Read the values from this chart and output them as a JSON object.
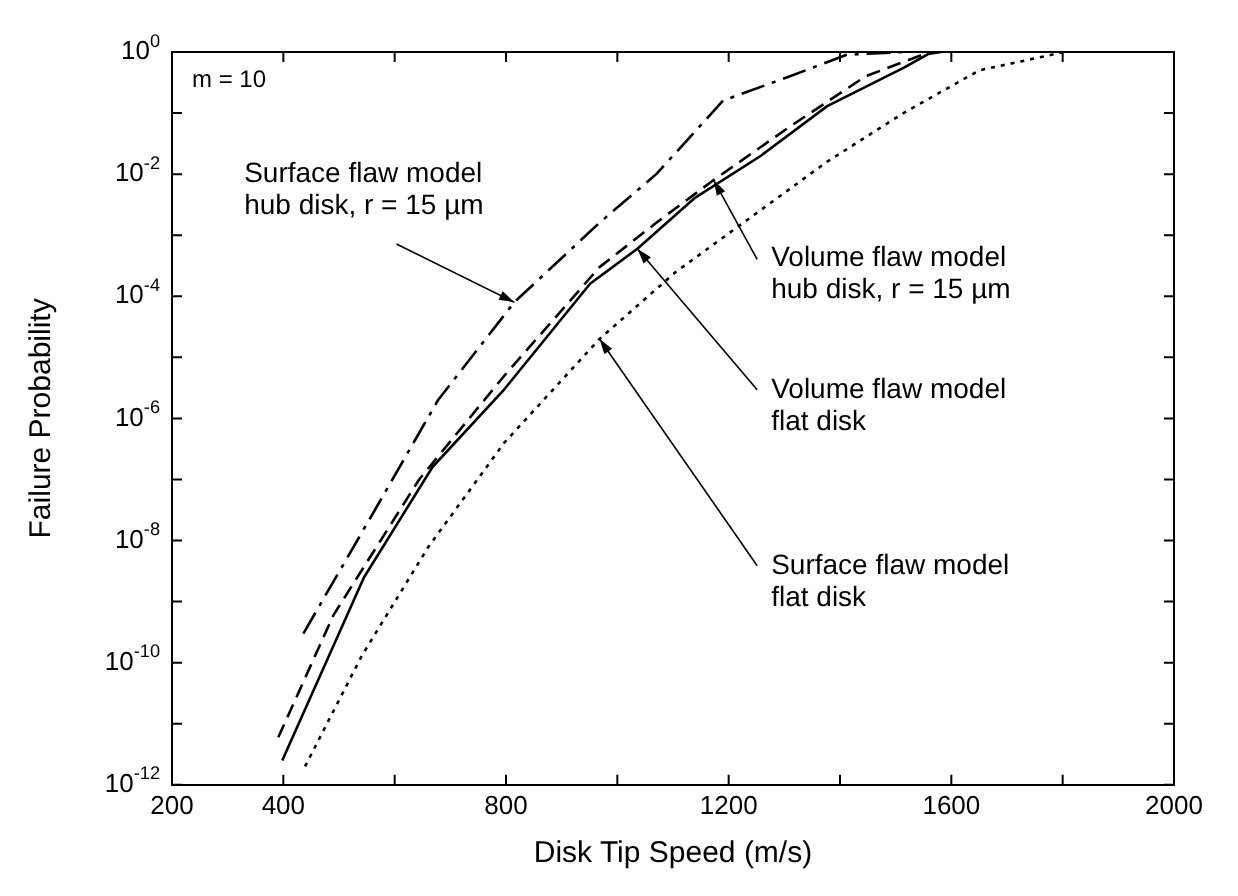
{
  "chart_data": {
    "type": "line",
    "xlabel": "Disk Tip Speed (m/s)",
    "ylabel": "Failure Probability",
    "log": "y",
    "grid": false,
    "legend": false,
    "marker": "none",
    "xlim": [
      200,
      2000
    ],
    "xticks": [
      200,
      400,
      {
        "value": 600,
        "label": null
      },
      800,
      {
        "value": 1000,
        "label": null
      },
      1200,
      {
        "value": 1400,
        "label": null
      },
      1600,
      {
        "value": 1800,
        "label": null
      },
      2000
    ],
    "ylim": [
      1e-12,
      1
    ],
    "yticks": [
      {
        "value": 1e-12,
        "label": "10$^{-12}$"
      },
      {
        "value": 1e-11,
        "label": null
      },
      {
        "value": 1e-10,
        "label": "10$^{-10}$"
      },
      {
        "value": 1e-09,
        "label": null
      },
      {
        "value": 1e-08,
        "label": "10$^{-8}$"
      },
      {
        "value": 1e-07,
        "label": null
      },
      {
        "value": 1e-06,
        "label": "10$^{-6}$"
      },
      {
        "value": 1e-05,
        "label": null
      },
      {
        "value": 0.0001,
        "label": "10$^{-4}$"
      },
      {
        "value": 0.001,
        "label": null
      },
      {
        "value": 0.01,
        "label": "10$^{-2}$"
      },
      {
        "value": 0.1,
        "label": null
      },
      {
        "value": 1,
        "label": "10$^{0}$"
      }
    ],
    "series": [
      {
        "color": "#000000",
        "line_style": "dashdot",
        "x": [
          436,
          558,
          678,
          815,
          968,
          1070,
          1190,
          1310,
          1412,
          1514
        ],
        "values": [
          3e-10,
          2.5e-08,
          2e-06,
          8e-05,
          0.0016,
          0.01,
          0.16,
          0.4,
          0.9,
          1
        ]
      },
      {
        "color": "#000000",
        "line_style": "dashed",
        "x": [
          391,
          490,
          644,
          797,
          968,
          1070,
          1173,
          1310,
          1446,
          1548,
          1582
        ],
        "values": [
          6e-12,
          6e-10,
          1e-07,
          5e-06,
          0.0003,
          0.0016,
          0.008,
          0.06,
          0.4,
          0.9,
          1
        ]
      },
      {
        "color": "#000000",
        "line_style": "solid",
        "x": [
          398,
          545,
          668,
          797,
          951,
          1036,
          1138,
          1258,
          1377,
          1514,
          1565
        ],
        "values": [
          2.5e-12,
          2.5e-09,
          1.6e-07,
          3e-06,
          0.00016,
          0.0006,
          0.004,
          0.02,
          0.13,
          0.55,
          1
        ]
      },
      {
        "color": "#000000",
        "line_style": "dotted",
        "x": [
          439,
          541,
          661,
          797,
          968,
          1105,
          1241,
          1377,
          1514,
          1650,
          1787,
          1800
        ],
        "values": [
          2e-12,
          1.3e-10,
          8e-09,
          4e-07,
          2e-05,
          0.00025,
          0.002,
          0.016,
          0.1,
          0.5,
          0.93,
          1
        ]
      }
    ],
    "annotations": [
      "m = 10",
      {
        "text": "Surface flaw model\nhub disk, r = 15 µm",
        "x": 815,
        "y": 8e-05
      },
      {
        "text": "Volume flaw model\nhub disk, r = 15 µm",
        "x": 1173,
        "y": 0.008
      },
      {
        "text": "Volume flaw model\nflat disk",
        "x": 1036,
        "y": 0.0006
      },
      {
        "text": "Surface flaw model\nflat disk",
        "x": 968,
        "y": 2e-05
      }
    ]
  }
}
